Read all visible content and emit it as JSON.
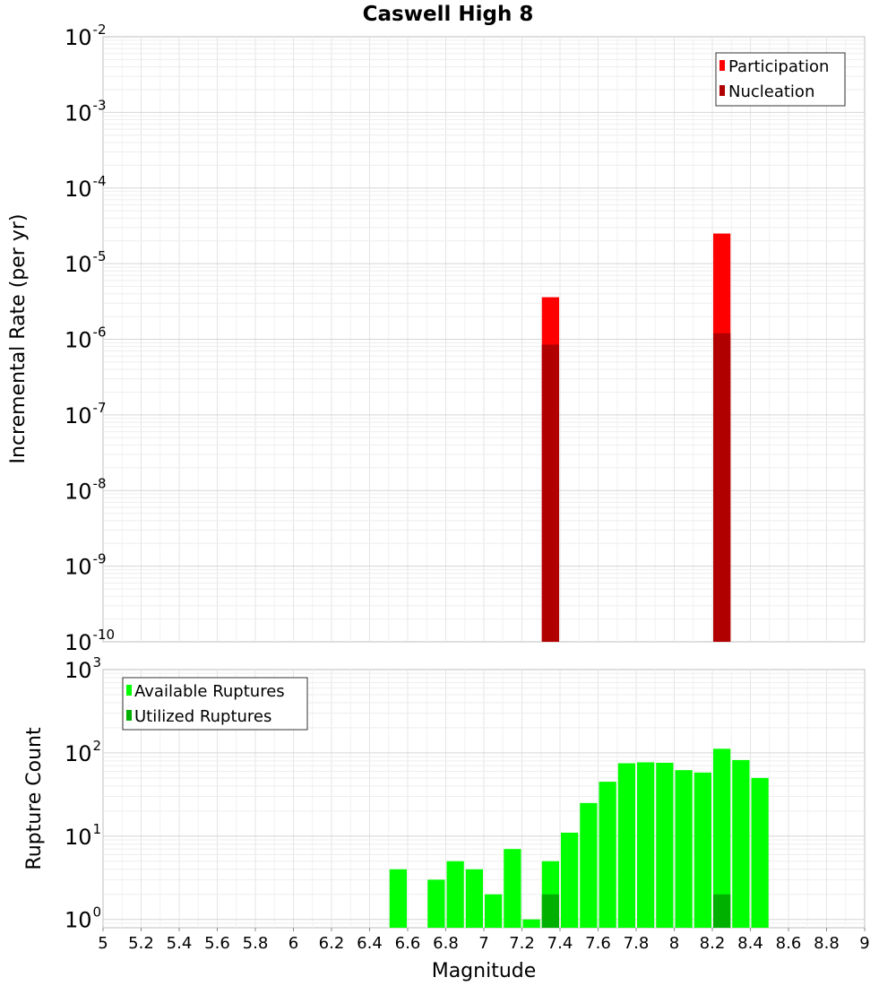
{
  "chart_data": [
    {
      "type": "bar",
      "title": "Caswell High 8",
      "ylabel": "Incremental Rate (per yr)",
      "xlabel": "",
      "xlim": [
        5,
        9
      ],
      "ylim_log10": [
        -10,
        -2
      ],
      "yscale": "log",
      "bar_width": 0.1,
      "ytick_exponents": [
        "-2",
        "-3",
        "-4",
        "-5",
        "-6",
        "-7",
        "-8",
        "-9",
        "-10"
      ],
      "legend": {
        "position": "top-right",
        "entries": [
          "Participation",
          "Nucleation"
        ]
      },
      "colors": {
        "Participation": "#ff0000",
        "Nucleation": "#b00000"
      },
      "series": [
        {
          "name": "Participation",
          "x": [
            7.35,
            8.25
          ],
          "values": [
            3.6e-06,
            2.5e-05
          ]
        },
        {
          "name": "Nucleation",
          "x": [
            7.35,
            8.25
          ],
          "values": [
            8.5e-07,
            1.2e-06
          ]
        }
      ]
    },
    {
      "type": "bar",
      "title": "",
      "ylabel": "Rupture Count",
      "xlabel": "Magnitude",
      "xlim": [
        5,
        9
      ],
      "ylim_log10": [
        -0.1,
        3
      ],
      "yscale": "log",
      "bar_width": 0.1,
      "xticks": [
        "5",
        "5.2",
        "5.4",
        "5.6",
        "5.8",
        "6",
        "6.2",
        "6.4",
        "6.6",
        "6.8",
        "7",
        "7.2",
        "7.4",
        "7.6",
        "7.8",
        "8",
        "8.2",
        "8.4",
        "8.6",
        "8.8",
        "9"
      ],
      "ytick_exponents": [
        "3",
        "2",
        "1",
        "0"
      ],
      "legend": {
        "position": "top-left",
        "entries": [
          "Available Ruptures",
          "Utilized Ruptures"
        ]
      },
      "colors": {
        "Available Ruptures": "#00ff00",
        "Utilized Ruptures": "#00b000"
      },
      "series": [
        {
          "name": "Available Ruptures",
          "x": [
            6.55,
            6.75,
            6.85,
            6.95,
            7.05,
            7.15,
            7.25,
            7.35,
            7.45,
            7.55,
            7.65,
            7.75,
            7.85,
            7.95,
            8.05,
            8.15,
            8.25,
            8.35,
            8.45
          ],
          "values": [
            4,
            3,
            5,
            4,
            2,
            7,
            1,
            5,
            11,
            25,
            45,
            75,
            77,
            76,
            62,
            58,
            112,
            82,
            50
          ]
        },
        {
          "name": "Utilized Ruptures",
          "x": [
            7.35,
            8.25
          ],
          "values": [
            2,
            2
          ]
        }
      ]
    }
  ]
}
